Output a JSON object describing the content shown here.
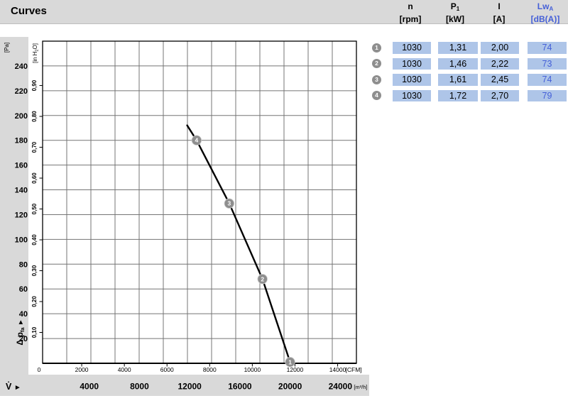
{
  "title": "Curves",
  "icons": {
    "arrow": "►"
  },
  "colors": {
    "band_gray": "#d9d9d9",
    "cell_blue": "#aec5e8",
    "accent_blue": "#4560d8",
    "marker_gray": "#8e8e8e",
    "grid_gray": "#757575",
    "curve_black": "#000000"
  },
  "table": {
    "headers": [
      {
        "main": "n",
        "sub": "",
        "unit": "[rpm]"
      },
      {
        "main": "P",
        "sub": "1",
        "unit": "[kW]"
      },
      {
        "main": "I",
        "sub": "",
        "unit": "[A]"
      },
      {
        "main": "Lw",
        "sub": "A",
        "unit": "[dB(A)]"
      }
    ],
    "rows": [
      {
        "id": "1",
        "n": "1030",
        "p1": "1,31",
        "i": "2,00",
        "lwa": "74"
      },
      {
        "id": "2",
        "n": "1030",
        "p1": "1,46",
        "i": "2,22",
        "lwa": "73"
      },
      {
        "id": "3",
        "n": "1030",
        "p1": "1,61",
        "i": "2,45",
        "lwa": "74"
      },
      {
        "id": "4",
        "n": "1030",
        "p1": "1,72",
        "i": "2,70",
        "lwa": "79"
      }
    ]
  },
  "chart_data": {
    "type": "line",
    "title": "",
    "grid": {
      "x_divisions": 13,
      "y_divisions": 13
    },
    "x_axis": {
      "axis_title": "V̇",
      "primary_unit": "[CFM]",
      "primary_ticks_cfm": [
        0,
        2000,
        4000,
        6000,
        8000,
        10000,
        12000,
        14000
      ],
      "secondary_unit": "[m³/h]",
      "secondary_ticks_m3h": [
        4000,
        8000,
        12000,
        16000,
        20000,
        24000
      ],
      "range_m3h": [
        0,
        25000
      ],
      "cfm_to_m3h": 1.699
    },
    "y_axis": {
      "axis_title_main": "Δ p",
      "axis_title_sub": "fa",
      "primary_unit": "[Pa]",
      "primary_ticks_pa": [
        20,
        40,
        60,
        80,
        100,
        120,
        140,
        160,
        180,
        200,
        220,
        240
      ],
      "secondary_unit_parts": [
        "[in H",
        "2",
        "O]"
      ],
      "secondary_ticks_inh2o": [
        "0,10",
        "0,20",
        "0,30",
        "0,40",
        "0,50",
        "0,60",
        "0,70",
        "0,80",
        "0,90"
      ],
      "range_pa": [
        0,
        260
      ],
      "inh2o_to_pa": 249.1
    },
    "series": [
      {
        "name": "pressure-curve",
        "points_m3h_pa": [
          [
            11800,
            192
          ],
          [
            12550,
            180
          ],
          [
            15150,
            129
          ],
          [
            17800,
            68
          ],
          [
            20000,
            1
          ]
        ]
      }
    ],
    "operating_points": [
      {
        "id": "1",
        "m3h": 20000,
        "pa": 1
      },
      {
        "id": "2",
        "m3h": 17800,
        "pa": 68
      },
      {
        "id": "3",
        "m3h": 15150,
        "pa": 129
      },
      {
        "id": "4",
        "m3h": 12550,
        "pa": 180
      }
    ]
  }
}
